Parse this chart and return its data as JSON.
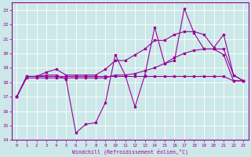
{
  "background_color": "#cce8e8",
  "line_color": "#990099",
  "grid_color": "#b0d8d8",
  "xlim": [
    -0.5,
    23.5
  ],
  "ylim": [
    14,
    23.5
  ],
  "yticks": [
    14,
    15,
    16,
    17,
    18,
    19,
    20,
    21,
    22,
    23
  ],
  "xticks": [
    0,
    1,
    2,
    3,
    4,
    5,
    6,
    7,
    8,
    9,
    10,
    11,
    12,
    13,
    14,
    15,
    16,
    17,
    18,
    19,
    20,
    21,
    22,
    23
  ],
  "xlabel": "Windchill (Refroidissement éolien,°C)",
  "lines": [
    {
      "x": [
        0,
        1,
        2,
        3,
        4,
        5,
        6,
        7,
        8,
        9,
        10,
        11,
        12,
        13,
        14,
        15,
        16,
        17,
        18,
        19,
        20,
        21,
        22,
        23
      ],
      "y": [
        17.0,
        18.4,
        18.4,
        18.5,
        18.5,
        18.2,
        14.5,
        15.1,
        15.2,
        16.6,
        19.9,
        18.5,
        16.3,
        18.5,
        21.8,
        19.3,
        19.5,
        23.1,
        21.4,
        20.3,
        20.3,
        19.9,
        18.1,
        18.1
      ]
    },
    {
      "x": [
        0,
        1,
        2,
        3,
        4,
        5,
        6,
        7,
        8,
        9,
        10,
        11,
        12,
        13,
        14,
        15,
        16,
        17,
        18,
        19,
        20,
        21,
        22,
        23
      ],
      "y": [
        17.0,
        18.4,
        18.4,
        18.7,
        18.9,
        18.5,
        18.5,
        18.5,
        18.5,
        18.9,
        19.5,
        19.5,
        19.9,
        20.3,
        20.9,
        20.9,
        21.3,
        21.5,
        21.5,
        21.3,
        20.4,
        21.3,
        18.5,
        18.1
      ]
    },
    {
      "x": [
        0,
        1,
        2,
        3,
        4,
        5,
        6,
        7,
        8,
        9,
        10,
        11,
        12,
        13,
        14,
        15,
        16,
        17,
        18,
        19,
        20,
        21,
        22,
        23
      ],
      "y": [
        17.0,
        18.3,
        18.3,
        18.3,
        18.3,
        18.3,
        18.3,
        18.3,
        18.3,
        18.3,
        18.5,
        18.5,
        18.6,
        18.8,
        19.0,
        19.3,
        19.7,
        20.0,
        20.2,
        20.3,
        20.3,
        20.3,
        18.5,
        18.1
      ]
    },
    {
      "x": [
        0,
        1,
        2,
        3,
        4,
        5,
        6,
        7,
        8,
        9,
        10,
        11,
        12,
        13,
        14,
        15,
        16,
        17,
        18,
        19,
        20,
        21,
        22,
        23
      ],
      "y": [
        17.0,
        18.4,
        18.4,
        18.4,
        18.4,
        18.4,
        18.4,
        18.4,
        18.4,
        18.4,
        18.4,
        18.4,
        18.4,
        18.4,
        18.4,
        18.4,
        18.4,
        18.4,
        18.4,
        18.4,
        18.4,
        18.4,
        18.1,
        18.1
      ]
    }
  ]
}
